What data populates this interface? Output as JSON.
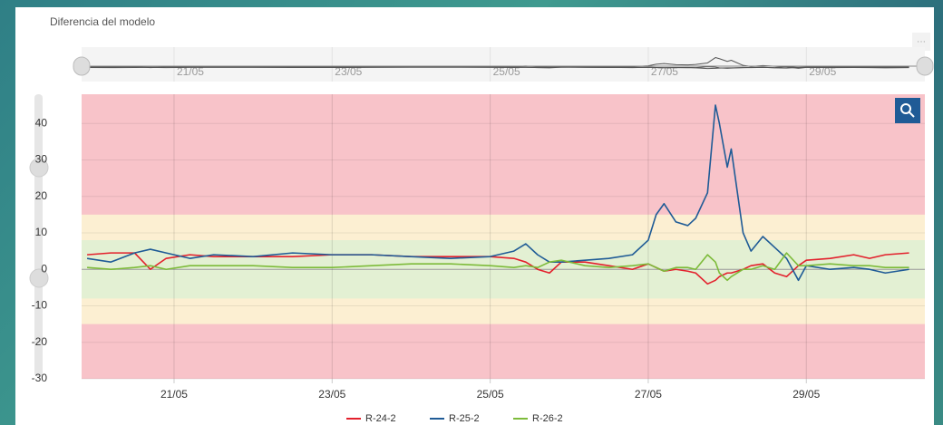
{
  "chart_data": {
    "type": "line",
    "title": "Diferencia del modelo",
    "x": [
      19.9,
      20.2,
      20.5,
      20.7,
      20.9,
      21.2,
      21.5,
      22.0,
      22.5,
      23.0,
      23.5,
      24.0,
      24.5,
      25.0,
      25.3,
      25.45,
      25.6,
      25.75,
      25.9,
      26.2,
      26.5,
      26.8,
      27.0,
      27.1,
      27.2,
      27.35,
      27.5,
      27.6,
      27.75,
      27.85,
      27.9,
      28.0,
      28.05,
      28.2,
      28.3,
      28.45,
      28.6,
      28.75,
      28.9,
      29.0,
      29.3,
      29.6,
      29.8,
      30.0,
      30.3
    ],
    "series": [
      {
        "name": "R-24-2",
        "color": "#e3202c",
        "values": [
          4,
          4.5,
          4.5,
          0,
          3,
          4,
          3.5,
          3.5,
          3.5,
          4,
          4,
          3.5,
          3.5,
          3.5,
          3,
          2,
          0,
          -1,
          2,
          2,
          1,
          0,
          1.5,
          0.5,
          -0.5,
          0,
          -0.5,
          -1,
          -4,
          -3,
          -2,
          -1,
          -1,
          0,
          1,
          1.5,
          -1,
          -2,
          1,
          2.5,
          3,
          4,
          3,
          4,
          4.5
        ]
      },
      {
        "name": "R-25-2",
        "color": "#1f5b96",
        "values": [
          3,
          2,
          4.5,
          5.5,
          4.5,
          3,
          4,
          3.5,
          4.5,
          4,
          4,
          3.5,
          3,
          3.5,
          5,
          7,
          4,
          2,
          2,
          2.5,
          3,
          4,
          8,
          15,
          18,
          13,
          12,
          14,
          21,
          45,
          40,
          28,
          33,
          10,
          5,
          9,
          6,
          3,
          -3,
          1,
          0,
          0.5,
          0,
          -1,
          0
        ]
      },
      {
        "name": "R-26-2",
        "color": "#7dbb3a",
        "values": [
          0.5,
          0,
          0.5,
          1,
          0,
          1,
          1,
          1,
          0.5,
          0.5,
          1,
          1.5,
          1.5,
          1,
          0.5,
          1,
          0.5,
          2,
          2.5,
          1,
          0.5,
          1,
          1.5,
          0.5,
          -0.5,
          0.5,
          0.5,
          0,
          4,
          2,
          -1,
          -3,
          -2,
          0,
          0,
          1,
          0,
          4.5,
          1,
          1,
          1.5,
          1,
          1,
          0.5,
          0.5
        ]
      }
    ],
    "xlim": [
      19.83,
      30.5
    ],
    "xticks": [
      {
        "value": 21,
        "label": "21/05"
      },
      {
        "value": 23,
        "label": "23/05"
      },
      {
        "value": 25,
        "label": "25/05"
      },
      {
        "value": 27,
        "label": "27/05"
      },
      {
        "value": 29,
        "label": "29/05"
      }
    ],
    "ylim": [
      -30,
      48
    ],
    "yticks": [
      -30,
      -20,
      -10,
      0,
      10,
      20,
      30,
      40
    ],
    "bands": [
      {
        "from": -30,
        "to": 48,
        "color": "#f8c3c9"
      },
      {
        "from": -15,
        "to": 15,
        "color": "#fcefd2"
      },
      {
        "from": -8,
        "to": 8,
        "color": "#e3f0d3"
      }
    ],
    "grid": true
  }
}
